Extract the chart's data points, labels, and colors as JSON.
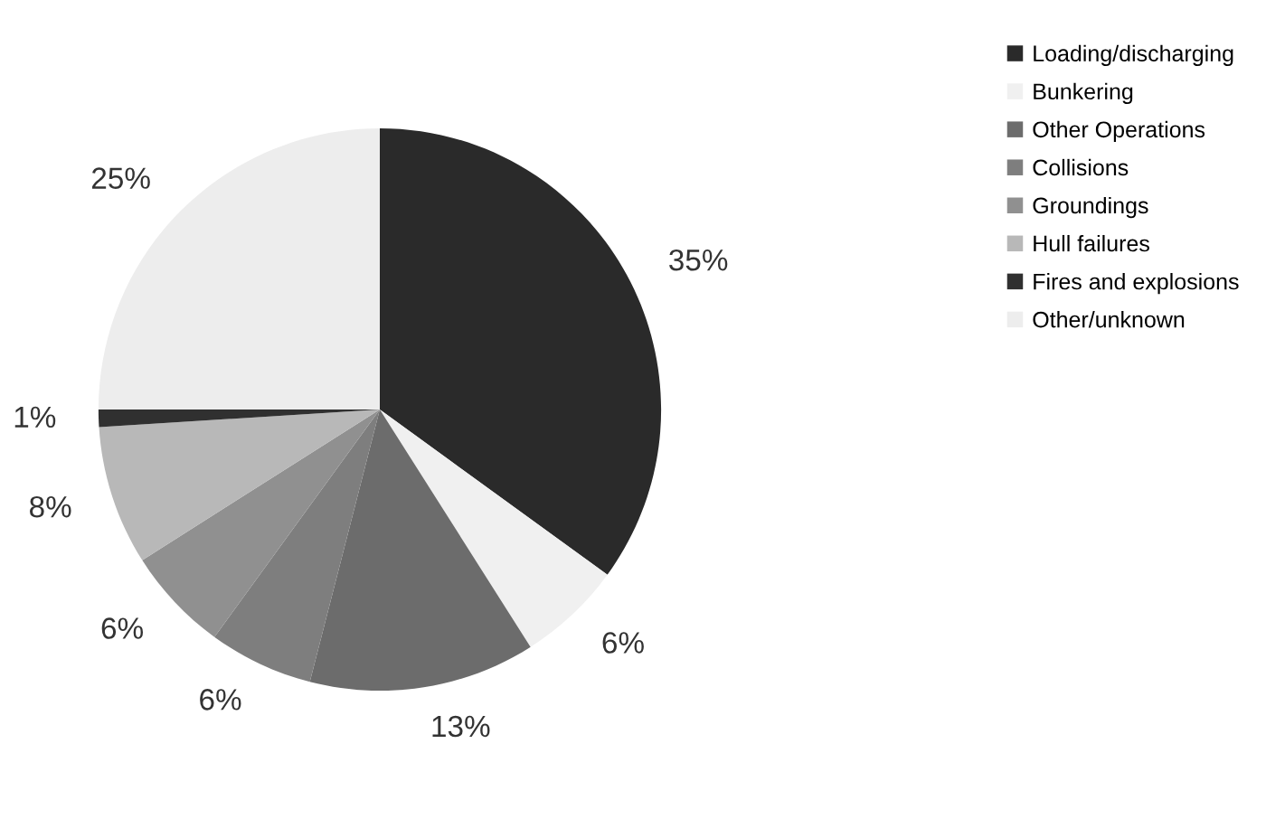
{
  "chart_data": {
    "type": "pie",
    "categories": [
      "Loading/discharging",
      "Bunkering",
      "Other Operations",
      "Collisions",
      "Groundings",
      "Hull failures",
      "Fires and explosions",
      "Other/unknown"
    ],
    "values": [
      35,
      6,
      13,
      6,
      6,
      8,
      1,
      25
    ],
    "colors": [
      "#2a2a2a",
      "#f0f0f0",
      "#6c6c6c",
      "#7e7e7e",
      "#909090",
      "#b8b8b8",
      "#303030",
      "#ededed"
    ],
    "value_labels": [
      "35%",
      "6%",
      "13%",
      "6%",
      "6%",
      "8%",
      "1%",
      "25%"
    ],
    "legend": "top right"
  }
}
